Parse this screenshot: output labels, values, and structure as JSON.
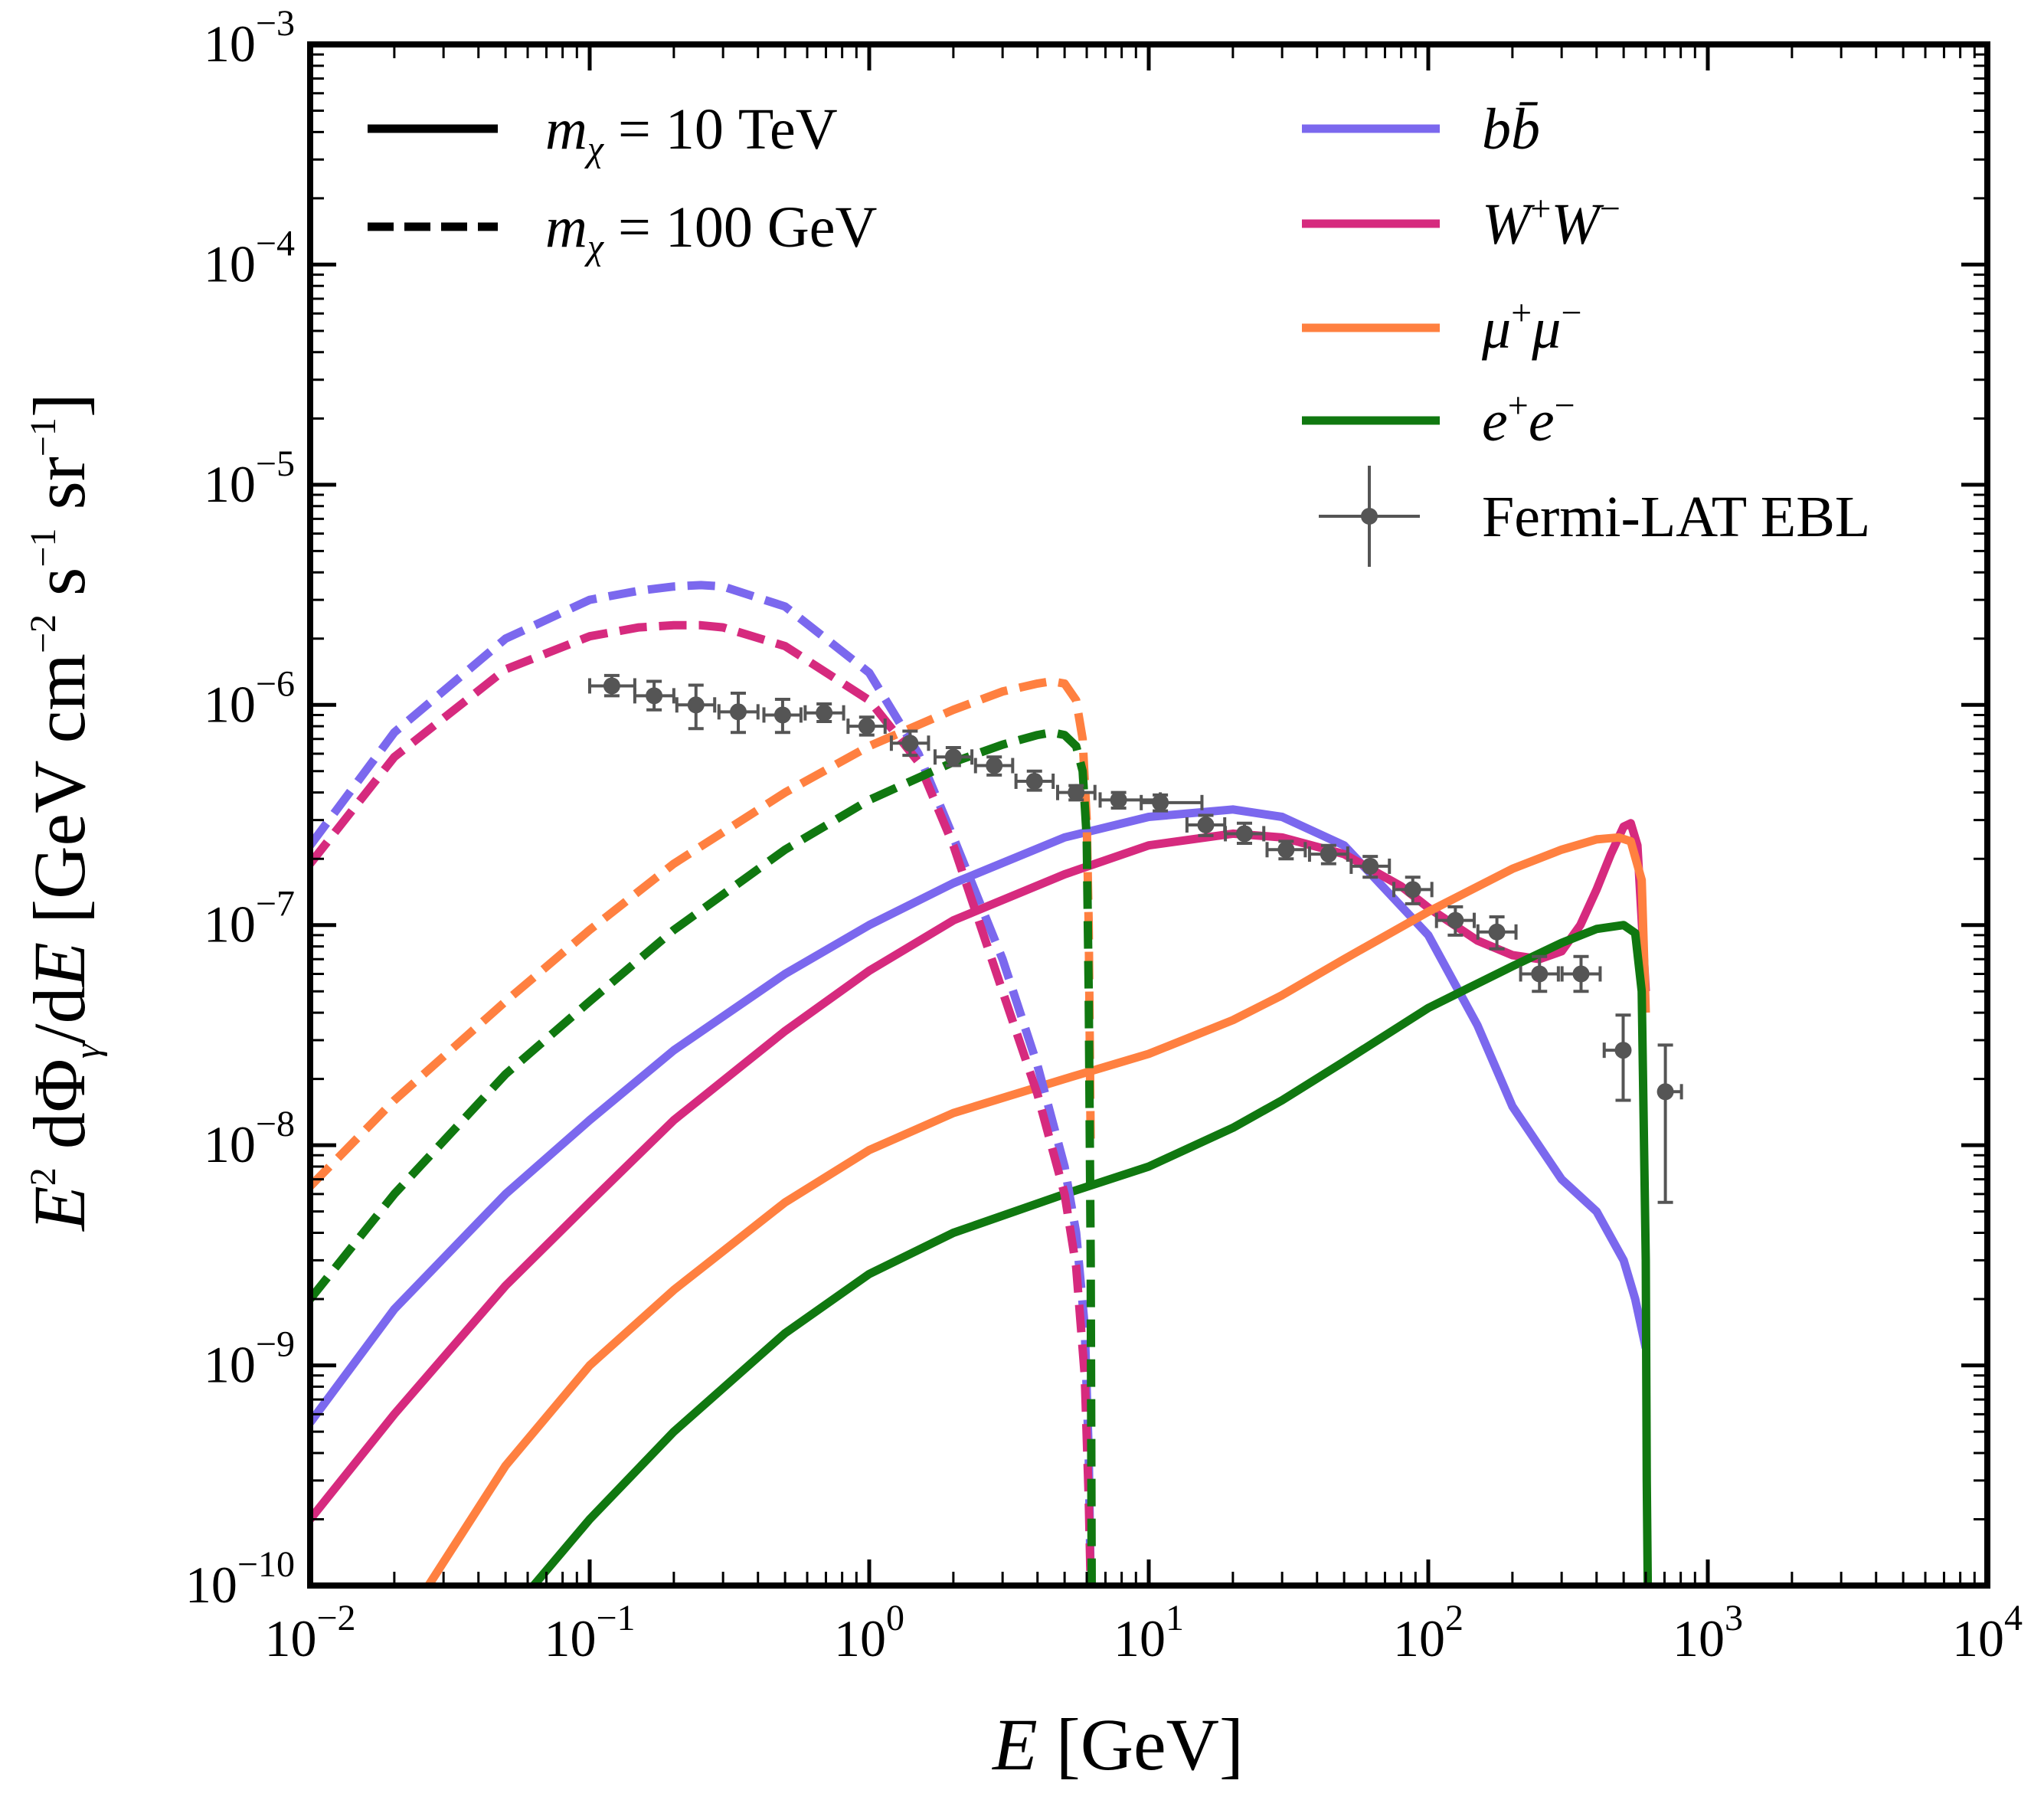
{
  "chart_data": {
    "type": "line",
    "xscale": "log",
    "yscale": "log",
    "xlim": [
      0.01,
      10000
    ],
    "ylim": [
      1e-10,
      0.001
    ],
    "xlabel": "E [GeV]",
    "ylabel": "E^2 dΦγ/dE [GeV cm^-2 s^-1 sr^-1]",
    "x_ticks": [
      {
        "base": "10",
        "exp": "−2",
        "value": 0.01
      },
      {
        "base": "10",
        "exp": "−1",
        "value": 0.1
      },
      {
        "base": "10",
        "exp": "0",
        "value": 1
      },
      {
        "base": "10",
        "exp": "1",
        "value": 10
      },
      {
        "base": "10",
        "exp": "2",
        "value": 100
      },
      {
        "base": "10",
        "exp": "3",
        "value": 1000
      },
      {
        "base": "10",
        "exp": "4",
        "value": 10000
      }
    ],
    "y_ticks": [
      {
        "base": "10",
        "exp": "−10",
        "value": 1e-10
      },
      {
        "base": "10",
        "exp": "−9",
        "value": 1e-09
      },
      {
        "base": "10",
        "exp": "−8",
        "value": 1e-08
      },
      {
        "base": "10",
        "exp": "−7",
        "value": 1e-07
      },
      {
        "base": "10",
        "exp": "−6",
        "value": 1e-06
      },
      {
        "base": "10",
        "exp": "−5",
        "value": 1e-05
      },
      {
        "base": "10",
        "exp": "−4",
        "value": 0.0001
      },
      {
        "base": "10",
        "exp": "−3",
        "value": 0.001
      }
    ],
    "legend_styles": [
      {
        "label": "mχ = 10 TeV",
        "style": "solid"
      },
      {
        "label": "mχ = 100 GeV",
        "style": "dashed"
      }
    ],
    "legend_channels": [
      {
        "label": "bb̄",
        "color": "#7b68ee"
      },
      {
        "label": "W+W−",
        "color": "#d62a7e"
      },
      {
        "label": "μ+μ−",
        "color": "#ff8040"
      },
      {
        "label": "e+e−",
        "color": "#107810"
      }
    ],
    "legend_data_label": "Fermi-LAT EBL",
    "series": [
      {
        "name": "bb̄ 10 TeV",
        "color": "#7b68ee",
        "style": "solid",
        "x": [
          0.01,
          0.02,
          0.05,
          0.1,
          0.2,
          0.5,
          1,
          2,
          5,
          10,
          20,
          30,
          50,
          100,
          150,
          200,
          300,
          400,
          500,
          550,
          600
        ],
        "y": [
          5.5e-10,
          1.8e-09,
          6e-09,
          1.3e-08,
          2.7e-08,
          6e-08,
          1e-07,
          1.55e-07,
          2.5e-07,
          3.1e-07,
          3.35e-07,
          3.1e-07,
          2.3e-07,
          9e-08,
          3.5e-08,
          1.5e-08,
          7e-09,
          5e-09,
          3e-09,
          2e-09,
          1.2e-09
        ]
      },
      {
        "name": "W+W− 10 TeV",
        "color": "#d62a7e",
        "style": "solid",
        "x": [
          0.01,
          0.02,
          0.05,
          0.1,
          0.2,
          0.5,
          1,
          2,
          5,
          10,
          20,
          30,
          50,
          80,
          100,
          150,
          200,
          250,
          300,
          350,
          400,
          450,
          500,
          530,
          560,
          600
        ],
        "y": [
          2e-10,
          6e-10,
          2.3e-09,
          5.5e-09,
          1.3e-08,
          3.3e-08,
          6.2e-08,
          1.05e-07,
          1.7e-07,
          2.3e-07,
          2.6e-07,
          2.5e-07,
          2.1e-07,
          1.5e-07,
          1.2e-07,
          8.5e-08,
          7.3e-08,
          7e-08,
          7.6e-08,
          1e-07,
          1.45e-07,
          2.1e-07,
          2.8e-07,
          2.9e-07,
          2.3e-07,
          5e-08
        ]
      },
      {
        "name": "μ+μ− 10 TeV",
        "color": "#ff8040",
        "style": "solid",
        "x": [
          0.0265,
          0.05,
          0.1,
          0.2,
          0.5,
          1,
          2,
          5,
          10,
          20,
          30,
          50,
          100,
          200,
          300,
          400,
          480,
          530,
          580,
          600
        ],
        "y": [
          1e-10,
          3.5e-10,
          1e-09,
          2.2e-09,
          5.5e-09,
          9.5e-09,
          1.4e-08,
          2e-08,
          2.6e-08,
          3.7e-08,
          4.8e-08,
          7e-08,
          1.15e-07,
          1.8e-07,
          2.2e-07,
          2.45e-07,
          2.5e-07,
          2.4e-07,
          1.6e-07,
          4e-08
        ]
      },
      {
        "name": "e+e− 10 TeV",
        "color": "#107810",
        "style": "solid",
        "x": [
          0.063,
          0.1,
          0.2,
          0.5,
          1,
          2,
          5,
          10,
          20,
          30,
          50,
          100,
          200,
          300,
          400,
          500,
          550,
          580,
          600,
          605,
          610
        ],
        "y": [
          1e-10,
          2e-10,
          5e-10,
          1.4e-09,
          2.6e-09,
          4e-09,
          6e-09,
          8e-09,
          1.2e-08,
          1.6e-08,
          2.4e-08,
          4.2e-08,
          6.5e-08,
          8.3e-08,
          9.6e-08,
          1e-07,
          9.2e-08,
          5e-08,
          3e-09,
          3e-10,
          1e-10
        ]
      },
      {
        "name": "bb̄ 100 GeV",
        "color": "#7b68ee",
        "style": "dashed",
        "x": [
          0.01,
          0.02,
          0.05,
          0.1,
          0.15,
          0.2,
          0.25,
          0.3,
          0.5,
          1,
          1.5,
          2,
          3,
          4,
          5,
          5.5,
          5.9,
          6.1,
          6.2
        ],
        "y": [
          2.3e-07,
          7.5e-07,
          2e-06,
          3e-06,
          3.3e-06,
          3.45e-06,
          3.5e-06,
          3.45e-06,
          2.8e-06,
          1.4e-06,
          6e-07,
          2.5e-07,
          7e-08,
          2.3e-08,
          8e-09,
          4e-09,
          1.5e-09,
          4e-10,
          1e-10
        ]
      },
      {
        "name": "W+W− 100 GeV",
        "color": "#d62a7e",
        "style": "dashed",
        "x": [
          0.01,
          0.02,
          0.05,
          0.1,
          0.15,
          0.2,
          0.25,
          0.3,
          0.5,
          1,
          1.5,
          2,
          3,
          4,
          5,
          5.5,
          5.9,
          6.1,
          6.2
        ],
        "y": [
          1.9e-07,
          5.8e-07,
          1.45e-06,
          2.05e-06,
          2.25e-06,
          2.3e-06,
          2.3e-06,
          2.25e-06,
          1.85e-06,
          1.05e-06,
          5.5e-07,
          2.3e-07,
          5e-08,
          1.7e-08,
          6e-09,
          2.8e-09,
          9e-10,
          2.5e-10,
          1e-10
        ]
      },
      {
        "name": "μ+μ− 100 GeV",
        "color": "#ff8040",
        "style": "dashed",
        "x": [
          0.01,
          0.02,
          0.05,
          0.1,
          0.2,
          0.5,
          1,
          2,
          3,
          4,
          4.5,
          5,
          5.5,
          5.8,
          6.0,
          6.1,
          6.2
        ],
        "y": [
          6.5e-09,
          1.6e-08,
          4.5e-08,
          9.5e-08,
          1.9e-07,
          4e-07,
          6.5e-07,
          9.5e-07,
          1.15e-06,
          1.25e-06,
          1.28e-06,
          1.25e-06,
          1.05e-06,
          7e-07,
          3e-07,
          1e-07,
          1e-08
        ]
      },
      {
        "name": "e+e− 100 GeV",
        "color": "#107810",
        "style": "dashed",
        "x": [
          0.01,
          0.02,
          0.05,
          0.1,
          0.2,
          0.5,
          1,
          2,
          3,
          4,
          4.5,
          5,
          5.5,
          5.8,
          6.0,
          6.1,
          6.2,
          6.25
        ],
        "y": [
          2e-09,
          6e-09,
          2.1e-08,
          4.5e-08,
          9.5e-08,
          2.2e-07,
          3.7e-07,
          5.5e-07,
          6.6e-07,
          7.3e-07,
          7.5e-07,
          7.3e-07,
          6.5e-07,
          5e-07,
          2.5e-07,
          5e-08,
          3e-09,
          1e-10
        ]
      }
    ],
    "points": {
      "name": "Fermi-LAT EBL",
      "color": "#555555",
      "x": [
        0.12,
        0.17,
        0.24,
        0.34,
        0.49,
        0.69,
        0.98,
        1.4,
        2,
        2.8,
        3.9,
        5.5,
        7.8,
        11,
        16,
        22,
        31,
        44,
        62,
        88,
        125,
        176,
        250,
        352,
        498,
        705
      ],
      "y": [
        1.22e-06,
        1.1e-06,
        1e-06,
        9.3e-07,
        9e-07,
        9.2e-07,
        8e-07,
        6.7e-07,
        5.8e-07,
        5.3e-07,
        4.5e-07,
        4e-07,
        3.7e-07,
        3.6e-07,
        2.85e-07,
        2.6e-07,
        2.2e-07,
        2.1e-07,
        1.85e-07,
        1.45e-07,
        1.05e-07,
        9.3e-08,
        6e-08,
        6e-08,
        2.7e-08,
        1.75e-08
      ],
      "xerr_lo": [
        0.02,
        0.025,
        0.035,
        0.05,
        0.07,
        0.1,
        0.14,
        0.2,
        0.28,
        0.4,
        0.55,
        0.78,
        1.1,
        1.6,
        2.3,
        3.2,
        4.5,
        6.4,
        9,
        12.7,
        18,
        25.5,
        36,
        51,
        72,
        0
      ],
      "xerr_hi": [
        0.025,
        0.03,
        0.04,
        0.06,
        0.08,
        0.12,
        0.16,
        0.23,
        0.33,
        0.46,
        0.65,
        0.92,
        3.2,
        4.5,
        2.7,
        3.8,
        5.3,
        7.5,
        10.6,
        15,
        21,
        30,
        42,
        60,
        0,
        100
      ],
      "yerr_lo": [
        1.2e-07,
        1.5e-07,
        2.2e-07,
        1.8e-07,
        1.5e-07,
        8e-08,
        7e-08,
        8e-08,
        5e-08,
        5e-08,
        4e-08,
        3e-08,
        3e-08,
        3e-08,
        3e-08,
        2.5e-08,
        2e-08,
        2e-08,
        2e-08,
        2e-08,
        1.5e-08,
        1.5e-08,
        1e-08,
        1e-08,
        1.1e-08,
        1.2e-08
      ],
      "yerr_hi": [
        1.4e-07,
        1.8e-07,
        2.3e-07,
        2e-07,
        1.6e-07,
        9e-08,
        8e-08,
        9e-08,
        6e-08,
        5e-08,
        5e-08,
        3e-08,
        3e-08,
        3e-08,
        3e-08,
        3e-08,
        2e-08,
        2e-08,
        2e-08,
        2e-08,
        1.6e-08,
        1.6e-08,
        1.2e-08,
        1.2e-08,
        1.2e-08,
        1.1e-08
      ]
    }
  }
}
